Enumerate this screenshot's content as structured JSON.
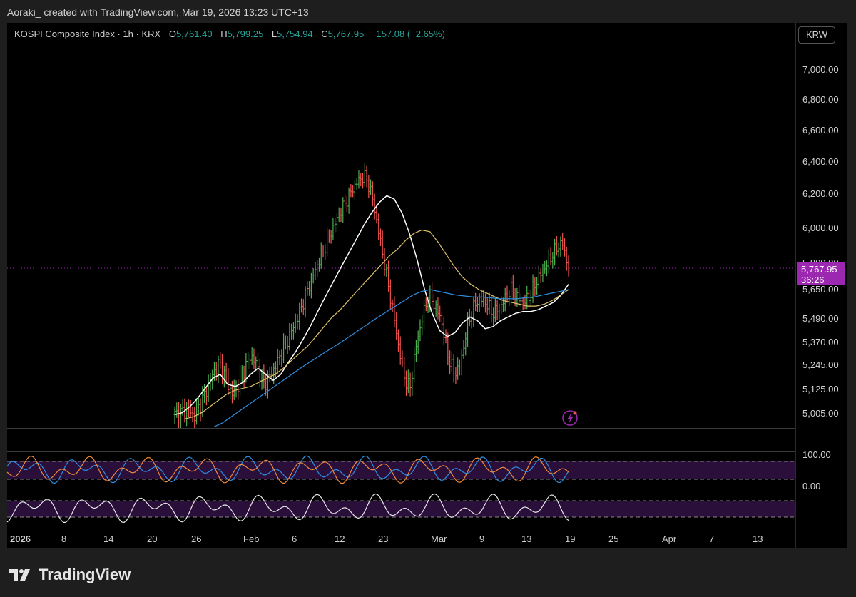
{
  "header": {
    "author_line": "Aoraki_ created with TradingView.com, Mar 19, 2026 13:23 UTC+13"
  },
  "legend": {
    "symbol": "KOSPI Composite Index · 1h · KRX",
    "open_label": "O",
    "open": "5,761.40",
    "high_label": "H",
    "high": "5,799.25",
    "low_label": "L",
    "low": "5,754.94",
    "close_label": "C",
    "close": "5,767.95",
    "change": "−157.08 (−2.65%)"
  },
  "currency": "KRW",
  "price_box": {
    "price": "5,767.95",
    "countdown": "36:26"
  },
  "colors": {
    "up": "#4caf50",
    "down": "#ef5350",
    "ma_fast": "#ffffff",
    "ma_mid": "#e0c36a",
    "ma_slow": "#2f8ee0",
    "accent": "#9c27b0"
  },
  "brand": {
    "name": "TradingView",
    "logo_icon": "tradingview-logo-icon"
  },
  "chart_data": {
    "type": "line",
    "title": "KOSPI Composite Index · 1h · KRX",
    "xlabel": "",
    "ylabel": "",
    "y_ticks": [
      "7,000.00",
      "6,800.00",
      "6,600.00",
      "6,400.00",
      "6,200.00",
      "6,000.00",
      "5,800.00",
      "5,650.00",
      "5,490.00",
      "5,370.00",
      "5,245.00",
      "5,125.00",
      "5,005.00"
    ],
    "x_ticks": [
      "2026",
      "8",
      "14",
      "20",
      "26",
      "Feb",
      "6",
      "12",
      "23",
      "Mar",
      "9",
      "13",
      "19",
      "25",
      "Apr",
      "7",
      "13"
    ],
    "ylim": [
      5005,
      7000
    ],
    "series": [
      {
        "values": [
          5000,
          5010,
          5030,
          4990,
          5050,
          5120,
          5200,
          5260,
          5180,
          5100,
          5150,
          5230,
          5300,
          5240,
          5150,
          5190,
          5250,
          5330,
          5400,
          5470,
          5560,
          5660,
          5750,
          5840,
          5930,
          6010,
          6090,
          6160,
          6230,
          6290,
          6310,
          6200,
          6000,
          5800,
          5600,
          5400,
          5200,
          5120,
          5350,
          5500,
          5620,
          5560,
          5480,
          5300,
          5200,
          5250,
          5450,
          5550,
          5600,
          5580,
          5520,
          5540,
          5600,
          5650,
          5600,
          5580,
          5620,
          5700,
          5760,
          5820,
          5880,
          5920,
          5767
        ]
      },
      {
        "values": [
          5000,
          5010,
          5040,
          5080,
          5130,
          5180,
          5200,
          5150,
          5140,
          5160,
          5200,
          5230,
          5200,
          5170,
          5200,
          5260,
          5320,
          5390,
          5460,
          5540,
          5620,
          5700,
          5780,
          5860,
          5940,
          6020,
          6090,
          6150,
          6190,
          6170,
          6090,
          5970,
          5820,
          5650,
          5520,
          5430,
          5400,
          5420,
          5470,
          5500,
          5480,
          5440,
          5450,
          5480,
          5500,
          5520,
          5530,
          5530,
          5540,
          5560,
          5580,
          5620,
          5680
        ]
      },
      {
        "values": [
          4980,
          4990,
          5010,
          5040,
          5070,
          5100,
          5120,
          5130,
          5140,
          5160,
          5180,
          5200,
          5230,
          5270,
          5310,
          5350,
          5400,
          5450,
          5500,
          5540,
          5590,
          5640,
          5690,
          5740,
          5790,
          5840,
          5880,
          5930,
          5970,
          5990,
          5980,
          5920,
          5850,
          5780,
          5720,
          5680,
          5650,
          5630,
          5610,
          5590,
          5580,
          5570,
          5560,
          5560,
          5570,
          5590,
          5620,
          5650
        ]
      },
      {
        "values": [
          4940,
          4960,
          4990,
          5020,
          5050,
          5080,
          5110,
          5140,
          5170,
          5200,
          5230,
          5260,
          5290,
          5320,
          5350,
          5380,
          5410,
          5440,
          5470,
          5500,
          5530,
          5560,
          5590,
          5620,
          5640,
          5650,
          5640,
          5630,
          5620,
          5615,
          5610,
          5610,
          5605,
          5600,
          5600,
          5600,
          5605,
          5610,
          5620,
          5630,
          5640,
          5650
        ]
      }
    ]
  }
}
